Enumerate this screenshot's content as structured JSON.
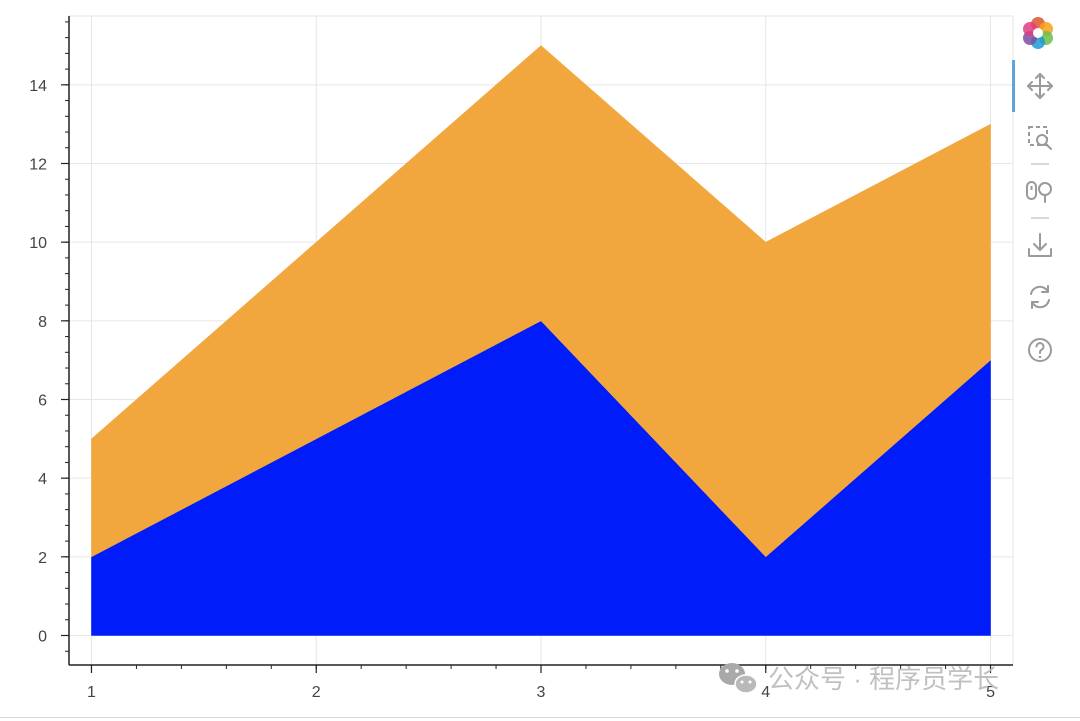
{
  "chart_data": {
    "type": "area",
    "stacked": true,
    "x": [
      1,
      2,
      3,
      4,
      5
    ],
    "xticks": [
      "1",
      "2",
      "3",
      "4",
      "5"
    ],
    "yticks": [
      "0",
      "2",
      "4",
      "6",
      "8",
      "10",
      "12",
      "14"
    ],
    "xlim": [
      0.9,
      5.1
    ],
    "ylim": [
      -0.75,
      15.75
    ],
    "grid": true,
    "series": [
      {
        "values": [
          2,
          5,
          8,
          2,
          7
        ],
        "color": "#001CF9"
      },
      {
        "values": [
          3,
          5,
          7,
          8,
          6
        ],
        "color": "#F2A73E"
      }
    ],
    "title": "",
    "xlabel": "",
    "ylabel": ""
  },
  "toolbar": {
    "tools": [
      {
        "name": "bokeh-logo-icon",
        "interactable": true
      },
      {
        "name": "pan-tool-icon",
        "interactable": true,
        "active": true
      },
      {
        "name": "box-zoom-tool-icon",
        "interactable": true
      },
      {
        "name": "wheel-zoom-tool-icon",
        "interactable": true
      },
      {
        "name": "save-tool-icon",
        "interactable": true
      },
      {
        "name": "reset-tool-icon",
        "interactable": true
      },
      {
        "name": "help-tool-icon",
        "interactable": true
      }
    ],
    "accent_color": "#5fa5d9",
    "icon_color": "#9a9a9a"
  },
  "watermark": {
    "text": "公众号 · 程序员学长",
    "icon": "wechat-icon"
  }
}
